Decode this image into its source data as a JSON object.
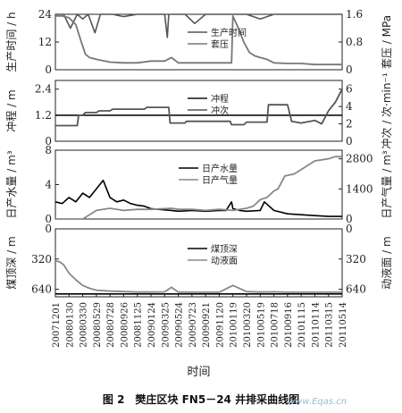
{
  "caption": "图 2　樊庄区块 FN5－24 井排采曲线图",
  "watermark": "www.Eqas.cn",
  "chart_data": {
    "type": "line",
    "x_label": "时间",
    "x_ticks": [
      "20071201",
      "20080130",
      "20080330",
      "20080529",
      "20080728",
      "20080926",
      "20081125",
      "20090124",
      "20090325",
      "20090524",
      "20090723",
      "20090921",
      "20091120",
      "20100119",
      "20100320",
      "20100519",
      "20100718",
      "20100916",
      "20101115",
      "20110114",
      "20110315",
      "20110514"
    ],
    "panels": [
      {
        "id": "p1",
        "left_label": "生产时间 / h",
        "left_ylim": [
          0,
          24
        ],
        "left_ticks": [
          0,
          12,
          24
        ],
        "right_label": "套压 / MPa",
        "right_ylim": [
          0,
          1.6
        ],
        "right_ticks": [
          0,
          0.8,
          1.6
        ],
        "legend": [
          "生产时间",
          "套压"
        ],
        "series": [
          {
            "name": "生产时间",
            "axis": "left",
            "color": "#555555",
            "x": [
              0,
              0.6,
              1.1,
              1.6,
              2.0,
              2.4,
              2.9,
              3.3,
              4.2,
              5.0,
              6.0,
              7.2,
              8.0,
              8.2,
              8.3,
              9.5,
              10.2,
              11.0,
              11.8,
              12.8,
              13.1,
              13.2,
              14.0,
              15.0,
              16.0,
              17.0,
              18.0,
              19.0,
              20.0,
              21.0
            ],
            "y": [
              24,
              24,
              18,
              24,
              22,
              24,
              16,
              24,
              24,
              23,
              24,
              24,
              24,
              14,
              24,
              24,
              20,
              24,
              24,
              24,
              24,
              24,
              24,
              22,
              24,
              24,
              24,
              24,
              24,
              24
            ]
          },
          {
            "name": "套压",
            "axis": "right",
            "color": "#777777",
            "x": [
              0,
              0.5,
              1.0,
              1.5,
              1.9,
              2.2,
              2.5,
              3.0,
              4.0,
              5.0,
              6.0,
              7.0,
              8.0,
              8.5,
              9.0,
              10.0,
              11.0,
              12.0,
              12.9,
              13.0,
              13.4,
              13.8,
              14.2,
              14.6,
              15.0,
              15.5,
              16.0,
              17.0,
              18.0,
              19.0,
              20.0,
              21.0
            ],
            "y": [
              1.55,
              1.55,
              1.5,
              1.3,
              0.8,
              0.45,
              0.35,
              0.3,
              0.22,
              0.2,
              0.2,
              0.25,
              0.25,
              0.35,
              0.2,
              0.2,
              0.2,
              0.2,
              0.2,
              1.55,
              1.2,
              0.8,
              0.5,
              0.4,
              0.35,
              0.3,
              0.2,
              0.18,
              0.18,
              0.15,
              0.15,
              0.15
            ]
          }
        ]
      },
      {
        "id": "p2",
        "left_label": "冲程 / m",
        "left_ylim": [
          0,
          2.8
        ],
        "left_ticks": [
          0,
          1.2,
          2.4
        ],
        "right_label": "冲次 / 次·min⁻¹",
        "right_ylim": [
          0,
          7
        ],
        "right_ticks": [
          0,
          2,
          4,
          6
        ],
        "legend": [
          "冲程",
          "冲次"
        ],
        "series": [
          {
            "name": "冲程",
            "axis": "left",
            "color": "#111111",
            "x": [
              0,
              21
            ],
            "y": [
              1.2,
              1.2
            ]
          },
          {
            "name": "冲次",
            "axis": "right",
            "color": "#555555",
            "x": [
              0,
              1.6,
              1.7,
              2.0,
              2.2,
              3.0,
              3.2,
              4.0,
              4.2,
              6.5,
              6.7,
              8.3,
              8.4,
              9.5,
              9.6,
              12.8,
              12.9,
              13.8,
              14.0,
              15.5,
              15.6,
              17.0,
              17.3,
              18.0,
              19.0,
              19.5,
              20.0,
              20.5,
              21.0
            ],
            "y": [
              1.8,
              1.8,
              3.0,
              3.0,
              3.3,
              3.3,
              3.5,
              3.5,
              3.7,
              3.7,
              3.9,
              3.9,
              2.1,
              2.1,
              2.3,
              2.3,
              1.9,
              1.9,
              2.2,
              2.2,
              4.2,
              4.2,
              2.3,
              2.1,
              2.4,
              2.0,
              3.5,
              4.5,
              6.0
            ]
          }
        ]
      },
      {
        "id": "p3",
        "left_label": "日产水量 / m³",
        "left_ylim": [
          0,
          8
        ],
        "left_ticks": [
          0,
          4,
          8
        ],
        "right_label": "日产气量 / m³",
        "right_ylim": [
          0,
          3200
        ],
        "right_ticks": [
          0,
          1400,
          2800
        ],
        "legend": [
          "日产水量",
          "日产气量"
        ],
        "series": [
          {
            "name": "日产水量",
            "axis": "left",
            "color": "#000000",
            "x": [
              0,
              0.5,
              1.0,
              1.5,
              2.0,
              2.5,
              3.0,
              3.5,
              4.0,
              4.5,
              5.0,
              5.5,
              6.0,
              6.5,
              7.0,
              8.5,
              9.0,
              10.0,
              11.0,
              12.0,
              12.5,
              12.9,
              13.0,
              13.5,
              14.0,
              15.0,
              15.3,
              16.0,
              17.0,
              18.0,
              19.0,
              20.0,
              21.0
            ],
            "y": [
              2.0,
              1.8,
              2.5,
              2.0,
              3.0,
              2.5,
              3.5,
              4.5,
              2.5,
              2.0,
              2.2,
              1.8,
              1.6,
              1.5,
              1.2,
              1.0,
              0.9,
              1.0,
              0.9,
              1.0,
              1.0,
              2.0,
              1.2,
              1.0,
              0.9,
              1.0,
              2.0,
              1.0,
              0.6,
              0.5,
              0.4,
              0.3,
              0.3
            ]
          },
          {
            "name": "日产气量",
            "axis": "right",
            "color": "#888888",
            "x": [
              0,
              2.0,
              2.5,
              3.0,
              4.0,
              5.0,
              6.0,
              7.0,
              8.5,
              9.0,
              10.0,
              11.0,
              12.0,
              13.0,
              14.0,
              14.5,
              15.0,
              15.5,
              16.0,
              16.3,
              16.8,
              17.5,
              18.0,
              18.5,
              19.0,
              19.5,
              20.0,
              20.5,
              21.0
            ],
            "y": [
              0,
              0,
              200,
              400,
              500,
              400,
              450,
              450,
              500,
              450,
              450,
              400,
              450,
              400,
              500,
              600,
              900,
              1000,
              1300,
              1400,
              2000,
              2100,
              2300,
              2500,
              2700,
              2750,
              2800,
              2900,
              2900
            ]
          }
        ]
      },
      {
        "id": "p4",
        "left_label": "煤顶深 / m",
        "left_ylim": [
          0,
          720
        ],
        "left_ticks": [
          0,
          320,
          640
        ],
        "left_reversed": true,
        "right_label": "动液面 / m",
        "right_ylim": [
          0,
          720
        ],
        "right_ticks": [
          0,
          320,
          640
        ],
        "right_reversed": true,
        "legend": [
          "煤顶深",
          "动液面"
        ],
        "series": [
          {
            "name": "煤顶深",
            "axis": "left",
            "color": "#000000",
            "x": [
              0,
              21
            ],
            "y": [
              690,
              690
            ]
          },
          {
            "name": "动液面",
            "axis": "right",
            "color": "#888888",
            "x": [
              0,
              0.3,
              0.6,
              1.0,
              1.5,
              2.0,
              2.5,
              3.0,
              4.0,
              5.0,
              6.0,
              7.0,
              8.0,
              8.5,
              9.0,
              10.0,
              11.0,
              12.0,
              13.0,
              14.0,
              15.0,
              16.0,
              17.0,
              18.0,
              19.0,
              20.0,
              21.0
            ],
            "y": [
              340,
              350,
              380,
              470,
              540,
              600,
              630,
              650,
              660,
              665,
              670,
              670,
              668,
              620,
              670,
              672,
              672,
              672,
              600,
              665,
              670,
              668,
              672,
              672,
              672,
              672,
              672
            ]
          }
        ]
      }
    ]
  }
}
